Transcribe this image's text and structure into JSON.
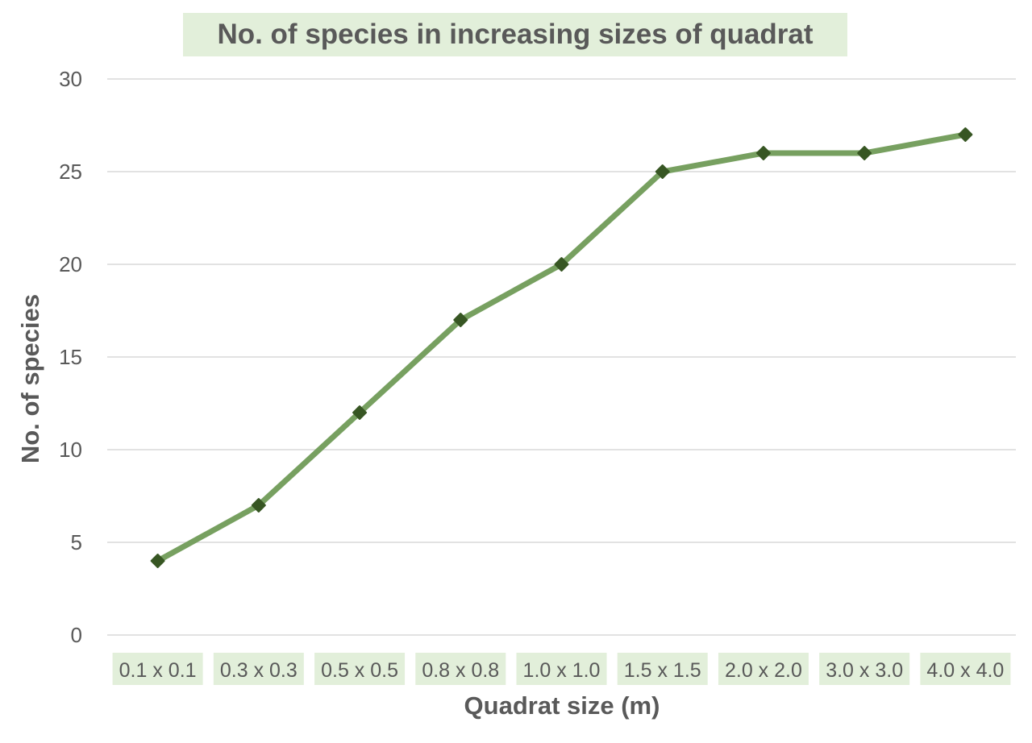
{
  "chart_data": {
    "type": "line",
    "title": "No. of species in increasing sizes of quadrat",
    "xlabel": "Quadrat size (m)",
    "ylabel": "No. of species",
    "categories": [
      "0.1 x 0.1",
      "0.3 x 0.3",
      "0.5 x 0.5",
      "0.8 x 0.8",
      "1.0 x 1.0",
      "1.5 x 1.5",
      "2.0 x 2.0",
      "3.0 x 3.0",
      "4.0 x 4.0"
    ],
    "series": [
      {
        "name": "No. of species",
        "values": [
          4,
          7,
          12,
          17,
          20,
          25,
          26,
          26,
          27
        ]
      }
    ],
    "ylim": [
      0,
      30
    ],
    "yticks": [
      0,
      5,
      10,
      15,
      20,
      25,
      30
    ],
    "grid": true,
    "colors": {
      "line": "#77a060",
      "marker": "#375623",
      "label_bg": "#e2efda",
      "grid": "#d9d9d9",
      "text": "#595959"
    }
  }
}
